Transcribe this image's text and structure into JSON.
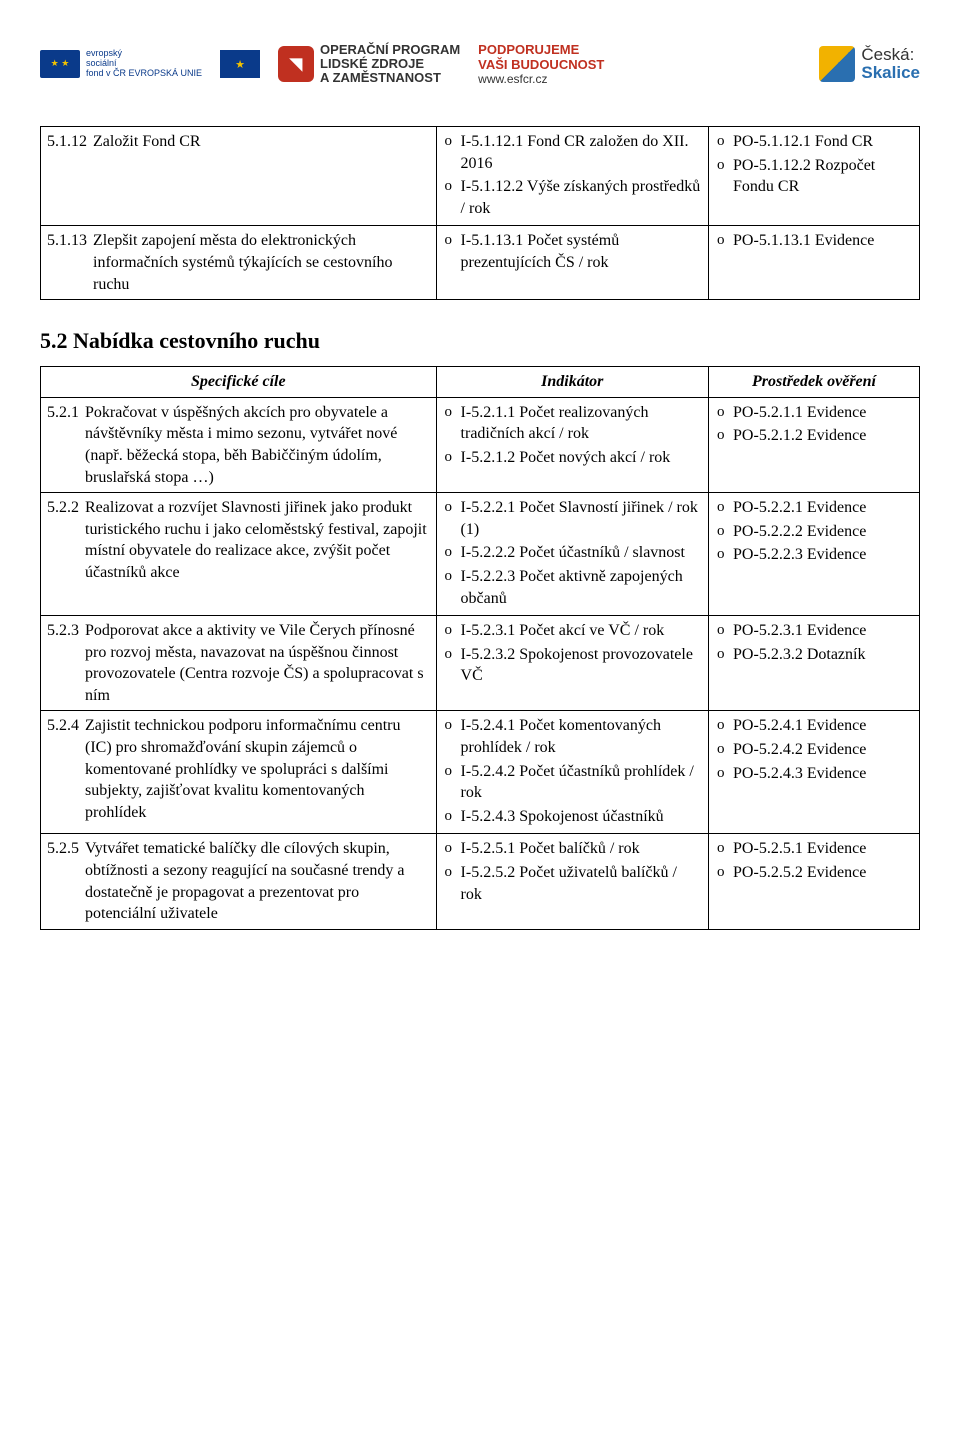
{
  "logos": {
    "esf_lines": [
      "evropský",
      "sociální",
      "fond v ČR  EVROPSKÁ UNIE"
    ],
    "op_l1": "OPERAČNÍ PROGRAM",
    "op_l2": "LIDSKÉ ZDROJE",
    "op_l3": "A ZAMĚSTNANOST",
    "pod_l1": "PODPORUJEME",
    "pod_l2": "VAŠI BUDOUCNOST",
    "pod_l3": "www.esfcr.cz",
    "sk_l1": "Česká:",
    "sk_l2": "Skalice"
  },
  "table1": {
    "rows": [
      {
        "num": "5.1.12",
        "desc": "Založit Fond CR",
        "ind": [
          "I-5.1.12.1 Fond CR založen do XII. 2016",
          "I-5.1.12.2 Výše získaných prostředků / rok"
        ],
        "pro": [
          "PO-5.1.12.1 Fond CR",
          "PO-5.1.12.2 Rozpočet Fondu CR"
        ]
      },
      {
        "num": "5.1.13",
        "desc": "Zlepšit zapojení města do elektronických informačních systémů týkajících se cestovního ruchu",
        "ind": [
          "I-5.1.13.1 Počet systémů prezentujících ČS / rok"
        ],
        "pro": [
          "PO-5.1.13.1 Evidence"
        ]
      }
    ]
  },
  "section52_title": "5.2 Nabídka cestovního ruchu",
  "table2": {
    "head": {
      "a": "Specifické cíle",
      "b": "Indikátor",
      "c": "Prostředek ověření"
    },
    "rows": [
      {
        "num": "5.2.1",
        "desc": "Pokračovat v úspěšných akcích pro obyvatele a návštěvníky města i mimo sezonu, vytvářet nové (např. běžecká stopa, běh Babiččiným údolím, bruslařská stopa …)",
        "ind": [
          "I-5.2.1.1 Počet realizovaných tradičních akcí / rok",
          "I-5.2.1.2 Počet nových akcí / rok"
        ],
        "pro": [
          "PO-5.2.1.1 Evidence",
          "PO-5.2.1.2 Evidence"
        ]
      },
      {
        "num": "5.2.2",
        "desc": "Realizovat a rozvíjet Slavnosti jiřinek jako produkt turistického ruchu i jako celoměstský festival, zapojit místní obyvatele do realizace akce, zvýšit počet účastníků akce",
        "ind": [
          "I-5.2.2.1 Počet Slavností jiřinek / rok (1)",
          "I-5.2.2.2 Počet účastníků / slavnost",
          "I-5.2.2.3 Počet aktivně zapojených občanů"
        ],
        "pro": [
          "PO-5.2.2.1 Evidence",
          "PO-5.2.2.2 Evidence",
          "PO-5.2.2.3 Evidence"
        ]
      },
      {
        "num": "5.2.3",
        "desc": "Podporovat akce a aktivity ve Vile Čerych přínosné pro rozvoj města, navazovat na úspěšnou činnost provozovatele (Centra rozvoje ČS) a spolupracovat s ním",
        "ind": [
          "I-5.2.3.1 Počet akcí ve VČ / rok",
          "I-5.2.3.2 Spokojenost provozovatele VČ"
        ],
        "pro": [
          "PO-5.2.3.1 Evidence",
          "PO-5.2.3.2 Dotazník"
        ]
      },
      {
        "num": "5.2.4",
        "desc": "Zajistit technickou podporu informačnímu centru (IC) pro shromažďování skupin zájemců o komentované prohlídky ve spolupráci s dalšími subjekty, zajišťovat kvalitu komentovaných prohlídek",
        "ind": [
          "I-5.2.4.1 Počet komentovaných prohlídek / rok",
          "I-5.2.4.2 Počet účastníků prohlídek / rok",
          "I-5.2.4.3 Spokojenost účastníků"
        ],
        "pro": [
          "PO-5.2.4.1 Evidence",
          "PO-5.2.4.2 Evidence",
          "PO-5.2.4.3 Evidence"
        ]
      },
      {
        "num": "5.2.5",
        "desc": "Vytvářet tematické balíčky dle cílových skupin, obtížnosti a sezony reagující na současné trendy a dostatečně je propagovat a prezentovat pro potenciální uživatele",
        "ind": [
          "I-5.2.5.1 Počet balíčků / rok",
          "I-5.2.5.2 Počet uživatelů balíčků / rok"
        ],
        "pro": [
          "PO-5.2.5.1 Evidence",
          "PO-5.2.5.2 Evidence"
        ]
      }
    ]
  }
}
